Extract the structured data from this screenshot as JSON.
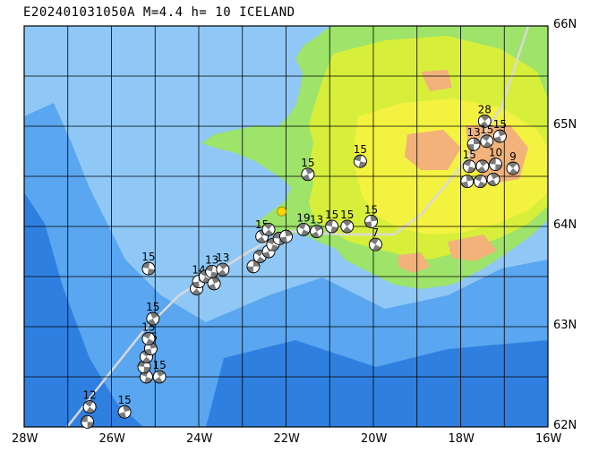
{
  "title": "E202401031050A M=4.4 h= 10 ICELAND",
  "axes": {
    "lon_labels": [
      "28W",
      "26W",
      "24W",
      "22W",
      "20W",
      "18W",
      "16W"
    ],
    "lat_labels": [
      "66N",
      "65N",
      "64N",
      "63N",
      "62N"
    ],
    "lon_range": [
      -28,
      -16
    ],
    "lat_range": [
      62,
      66
    ]
  },
  "colors": {
    "deep_sea": "#2e7fe0",
    "mid_sea": "#5aa6f0",
    "shelf_sea": "#8fc8f6",
    "lowland": "#9ee36a",
    "upland": "#d7ef3a",
    "highland": "#f4f240",
    "peak": "#f2b27a",
    "ridge_line": "#d9d9d9",
    "epicenter": "#ffd400"
  },
  "epicenter": {
    "lon": -22.1,
    "lat": 64.15
  },
  "mechanisms": [
    {
      "lon": -26.55,
      "lat": 62.05,
      "label": ""
    },
    {
      "lon": -26.5,
      "lat": 62.2,
      "label": "12"
    },
    {
      "lon": -25.7,
      "lat": 62.15,
      "label": "15"
    },
    {
      "lon": -25.2,
      "lat": 62.5,
      "label": ""
    },
    {
      "lon": -24.9,
      "lat": 62.5,
      "label": "15"
    },
    {
      "lon": -25.25,
      "lat": 62.6,
      "label": ""
    },
    {
      "lon": -25.2,
      "lat": 62.7,
      "label": ""
    },
    {
      "lon": -25.1,
      "lat": 62.78,
      "label": "15"
    },
    {
      "lon": -25.15,
      "lat": 62.88,
      "label": "15"
    },
    {
      "lon": -25.05,
      "lat": 63.08,
      "label": "15"
    },
    {
      "lon": -25.15,
      "lat": 63.58,
      "label": "15"
    },
    {
      "lon": -24.05,
      "lat": 63.38,
      "label": ""
    },
    {
      "lon": -24.0,
      "lat": 63.45,
      "label": "14"
    },
    {
      "lon": -23.85,
      "lat": 63.5,
      "label": ""
    },
    {
      "lon": -23.65,
      "lat": 63.43,
      "label": ""
    },
    {
      "lon": -23.7,
      "lat": 63.55,
      "label": "13"
    },
    {
      "lon": -23.45,
      "lat": 63.57,
      "label": "13"
    },
    {
      "lon": -22.75,
      "lat": 63.6,
      "label": ""
    },
    {
      "lon": -22.6,
      "lat": 63.7,
      "label": ""
    },
    {
      "lon": -22.4,
      "lat": 63.75,
      "label": ""
    },
    {
      "lon": -22.3,
      "lat": 63.82,
      "label": ""
    },
    {
      "lon": -22.55,
      "lat": 63.9,
      "label": "15"
    },
    {
      "lon": -22.15,
      "lat": 63.88,
      "label": ""
    },
    {
      "lon": -22.4,
      "lat": 63.97,
      "label": ""
    },
    {
      "lon": -22.0,
      "lat": 63.9,
      "label": ""
    },
    {
      "lon": -21.6,
      "lat": 63.97,
      "label": "19"
    },
    {
      "lon": -21.3,
      "lat": 63.95,
      "label": "13"
    },
    {
      "lon": -20.95,
      "lat": 64.0,
      "label": "15"
    },
    {
      "lon": -20.6,
      "lat": 64.0,
      "label": "15"
    },
    {
      "lon": -20.05,
      "lat": 64.05,
      "label": "15"
    },
    {
      "lon": -19.95,
      "lat": 63.82,
      "label": "7"
    },
    {
      "lon": -21.5,
      "lat": 64.52,
      "label": "15"
    },
    {
      "lon": -20.3,
      "lat": 64.65,
      "label": "15"
    },
    {
      "lon": -17.45,
      "lat": 65.05,
      "label": "28"
    },
    {
      "lon": -17.7,
      "lat": 64.82,
      "label": "13"
    },
    {
      "lon": -17.4,
      "lat": 64.85,
      "label": "15"
    },
    {
      "lon": -17.1,
      "lat": 64.9,
      "label": "15"
    },
    {
      "lon": -17.8,
      "lat": 64.6,
      "label": "15"
    },
    {
      "lon": -17.5,
      "lat": 64.6,
      "label": ""
    },
    {
      "lon": -17.2,
      "lat": 64.62,
      "label": "10"
    },
    {
      "lon": -16.8,
      "lat": 64.58,
      "label": "9"
    },
    {
      "lon": -17.85,
      "lat": 64.45,
      "label": ""
    },
    {
      "lon": -17.55,
      "lat": 64.45,
      "label": ""
    },
    {
      "lon": -17.25,
      "lat": 64.47,
      "label": ""
    }
  ]
}
